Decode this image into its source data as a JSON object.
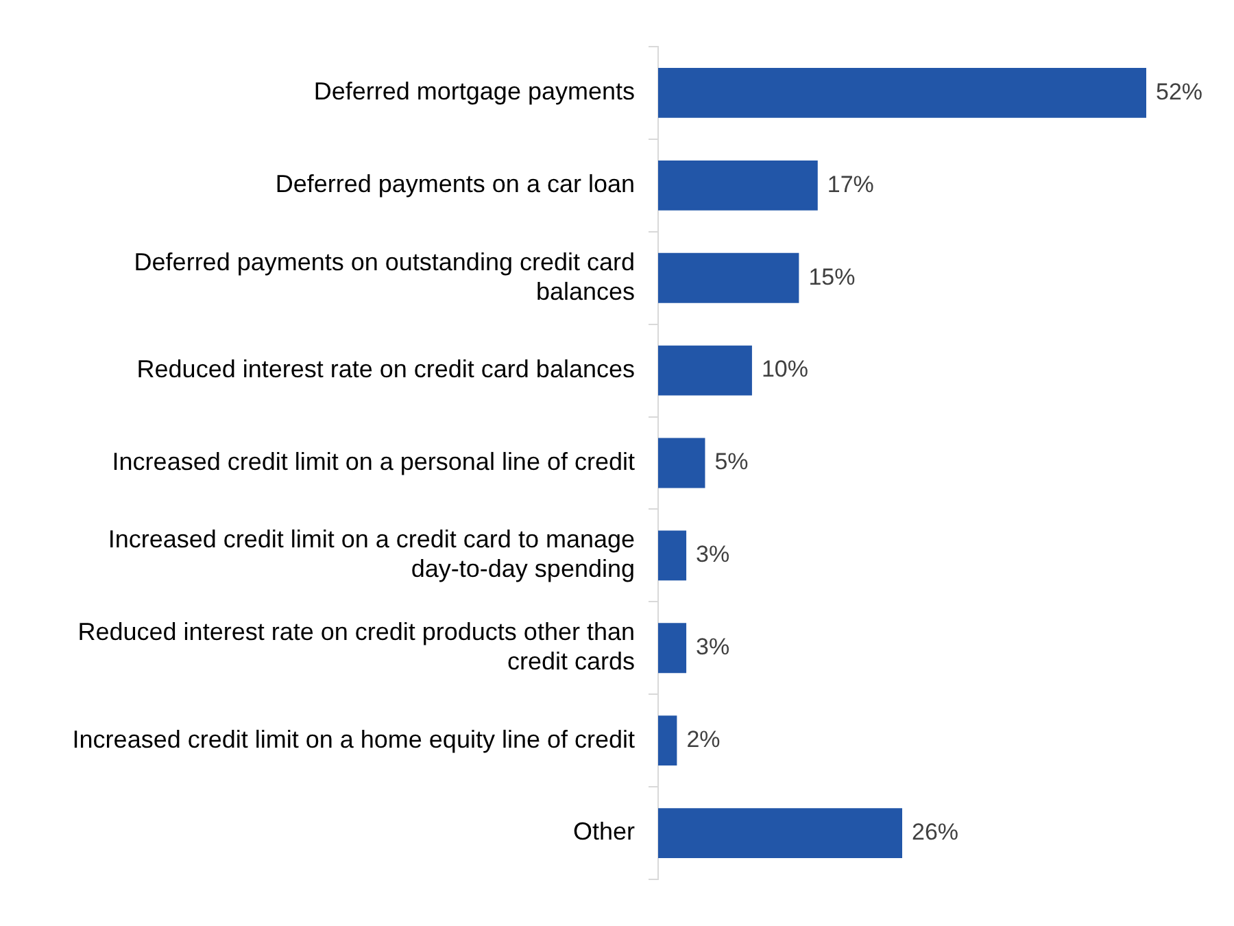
{
  "chart_data": {
    "type": "bar",
    "orientation": "horizontal",
    "categories": [
      "Deferred mortgage payments",
      "Deferred payments on a car loan",
      "Deferred payments on outstanding credit card balances",
      "Reduced interest rate on credit card balances",
      "Increased credit limit on a personal line of credit",
      "Increased credit limit on a credit card to manage day-to-day spending",
      "Reduced interest rate on credit products other than credit cards",
      "Increased credit limit on a home equity line of credit",
      "Other"
    ],
    "values": [
      52,
      17,
      15,
      10,
      5,
      3,
      3,
      2,
      26
    ],
    "value_labels": [
      "52%",
      "17%",
      "15%",
      "10%",
      "5%",
      "3%",
      "3%",
      "2%",
      "26%"
    ],
    "color": "#2256a8",
    "tick_labels": "y"
  }
}
